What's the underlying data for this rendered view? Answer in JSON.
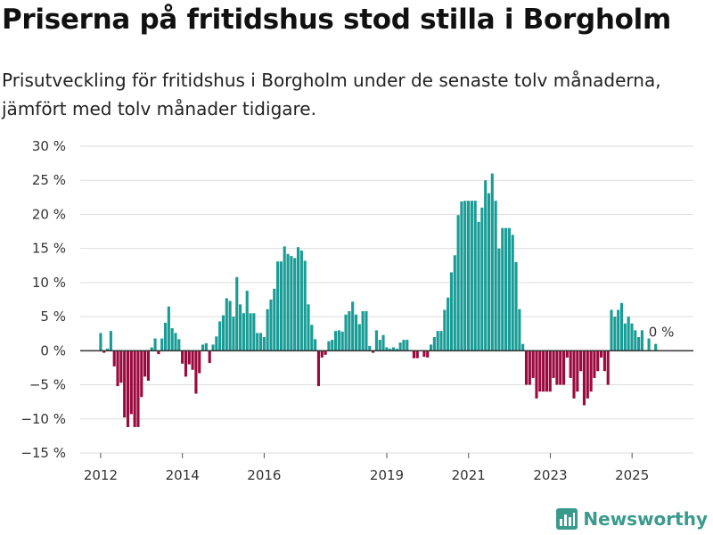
{
  "title": "Priserna på fritidshus stod stilla i Borgholm",
  "subtitle": "Prisutveckling för fritidshus i Borgholm under de senaste tolv månaderna, jämfört med tolv månader tidigare.",
  "colors": {
    "positive": "#1a9c96",
    "negative": "#9a0a3e",
    "grid": "#dddddd",
    "zero_line": "#333333",
    "brand": "#3a9a8c"
  },
  "logo": {
    "text": "Newsworthy",
    "icon": "bar-chart-icon"
  },
  "chart_data": {
    "type": "bar",
    "title": "Priserna på fritidshus stod stilla i Borgholm",
    "ylabel": "",
    "xlabel": "",
    "ylim": [
      -15,
      30
    ],
    "y_ticks": [
      30,
      25,
      20,
      15,
      10,
      5,
      0,
      -5,
      -10,
      -15
    ],
    "y_tick_labels": [
      "30 %",
      "25 %",
      "20 %",
      "15 %",
      "10 %",
      "5 %",
      "0 %",
      "−5 %",
      "−10 %",
      "−15 %"
    ],
    "x_range": [
      2011.5,
      2026.5
    ],
    "x_ticks": [
      2012,
      2014,
      2016,
      2019,
      2021,
      2023,
      2025
    ],
    "x_tick_labels": [
      "2012",
      "2014",
      "2016",
      "2019",
      "2021",
      "2023",
      "2025"
    ],
    "annotation": {
      "text": "0 %",
      "x": 2025.58,
      "y": 0
    },
    "start_x": 2012.0,
    "step": 0.0833,
    "values": [
      2.6,
      -0.3,
      0.3,
      2.9,
      -2.3,
      -5.2,
      -4.7,
      -9.8,
      -11.2,
      -9.3,
      -11.2,
      -11.2,
      -6.8,
      -3.8,
      -4.4,
      0.5,
      1.8,
      -0.5,
      1.8,
      4.1,
      6.5,
      3.3,
      2.6,
      1.7,
      -1.9,
      -3.8,
      -2.0,
      -2.8,
      -6.3,
      -3.3,
      0.9,
      1.1,
      -1.8,
      0.9,
      2.1,
      4.3,
      5.2,
      7.7,
      7.3,
      5.0,
      10.8,
      6.8,
      5.5,
      8.8,
      5.5,
      5.5,
      2.6,
      2.6,
      2.0,
      6.1,
      7.5,
      9.1,
      13.1,
      13.1,
      15.3,
      14.2,
      13.9,
      13.6,
      15.2,
      14.7,
      13.2,
      6.8,
      3.8,
      1.7,
      -5.2,
      -1.0,
      -0.6,
      1.4,
      1.6,
      2.9,
      3.0,
      2.8,
      5.3,
      5.8,
      7.2,
      5.3,
      3.9,
      5.8,
      5.8,
      0.7,
      -0.3,
      3.0,
      1.6,
      2.3,
      0.5,
      0.3,
      0.5,
      0.3,
      1.2,
      1.6,
      1.6,
      0.1,
      -1.1,
      -1.1,
      0.0,
      -0.9,
      -1.0,
      0.9,
      2.0,
      2.9,
      2.9,
      6.0,
      7.8,
      11.5,
      14.0,
      19.9,
      21.9,
      22.0,
      22.0,
      22.0,
      22.0,
      18.9,
      21.0,
      25.0,
      23.1,
      26.0,
      22.0,
      15.0,
      18.0,
      18.0,
      18.0,
      17.0,
      13.0,
      6.1,
      1.0,
      -5.0,
      -5.0,
      -4.0,
      -7.0,
      -6.0,
      -6.0,
      -6.0,
      -6.0,
      -4.0,
      -5.0,
      -5.0,
      -5.0,
      -1.0,
      -4.0,
      -7.0,
      -6.0,
      -3.0,
      -8.0,
      -7.0,
      -6.0,
      -4.0,
      -3.0,
      -1.0,
      -3.0,
      -5.0,
      6.0,
      5.0,
      6.0,
      7.0,
      4.0,
      5.0,
      4.0,
      3.0,
      2.0,
      3.0,
      0.0,
      1.8,
      0.0,
      1.0
    ]
  }
}
